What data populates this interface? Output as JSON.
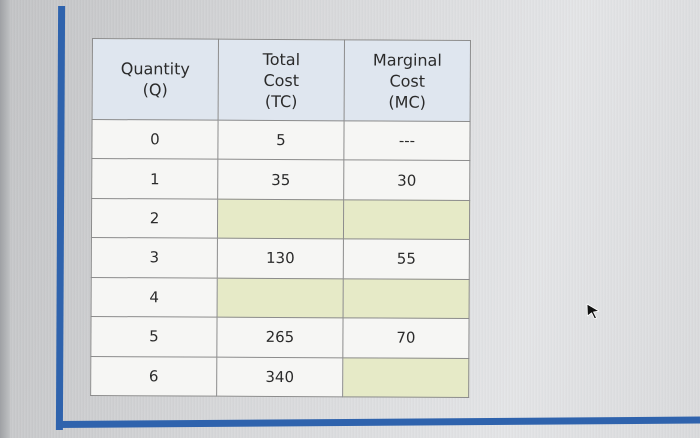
{
  "headers": {
    "quantity": [
      "Quantity",
      "(Q)"
    ],
    "total_cost": [
      "Total",
      "Cost",
      "(TC)"
    ],
    "marginal_cost": [
      "Marginal",
      "Cost",
      "(MC)"
    ]
  },
  "rows": [
    {
      "q": "0",
      "tc": "5",
      "mc": "---"
    },
    {
      "q": "1",
      "tc": "35",
      "mc": "30"
    },
    {
      "q": "2",
      "tc": "",
      "mc": ""
    },
    {
      "q": "3",
      "tc": "130",
      "mc": "55"
    },
    {
      "q": "4",
      "tc": "",
      "mc": ""
    },
    {
      "q": "5",
      "tc": "265",
      "mc": "70"
    },
    {
      "q": "6",
      "tc": "340",
      "mc": ""
    }
  ],
  "colors": {
    "header_bg": "#dfe6ef",
    "blank_cell": "#e6eac7",
    "frame_accent": "#2f63ad"
  },
  "icons": {
    "cursor": "mouse-pointer-icon"
  }
}
